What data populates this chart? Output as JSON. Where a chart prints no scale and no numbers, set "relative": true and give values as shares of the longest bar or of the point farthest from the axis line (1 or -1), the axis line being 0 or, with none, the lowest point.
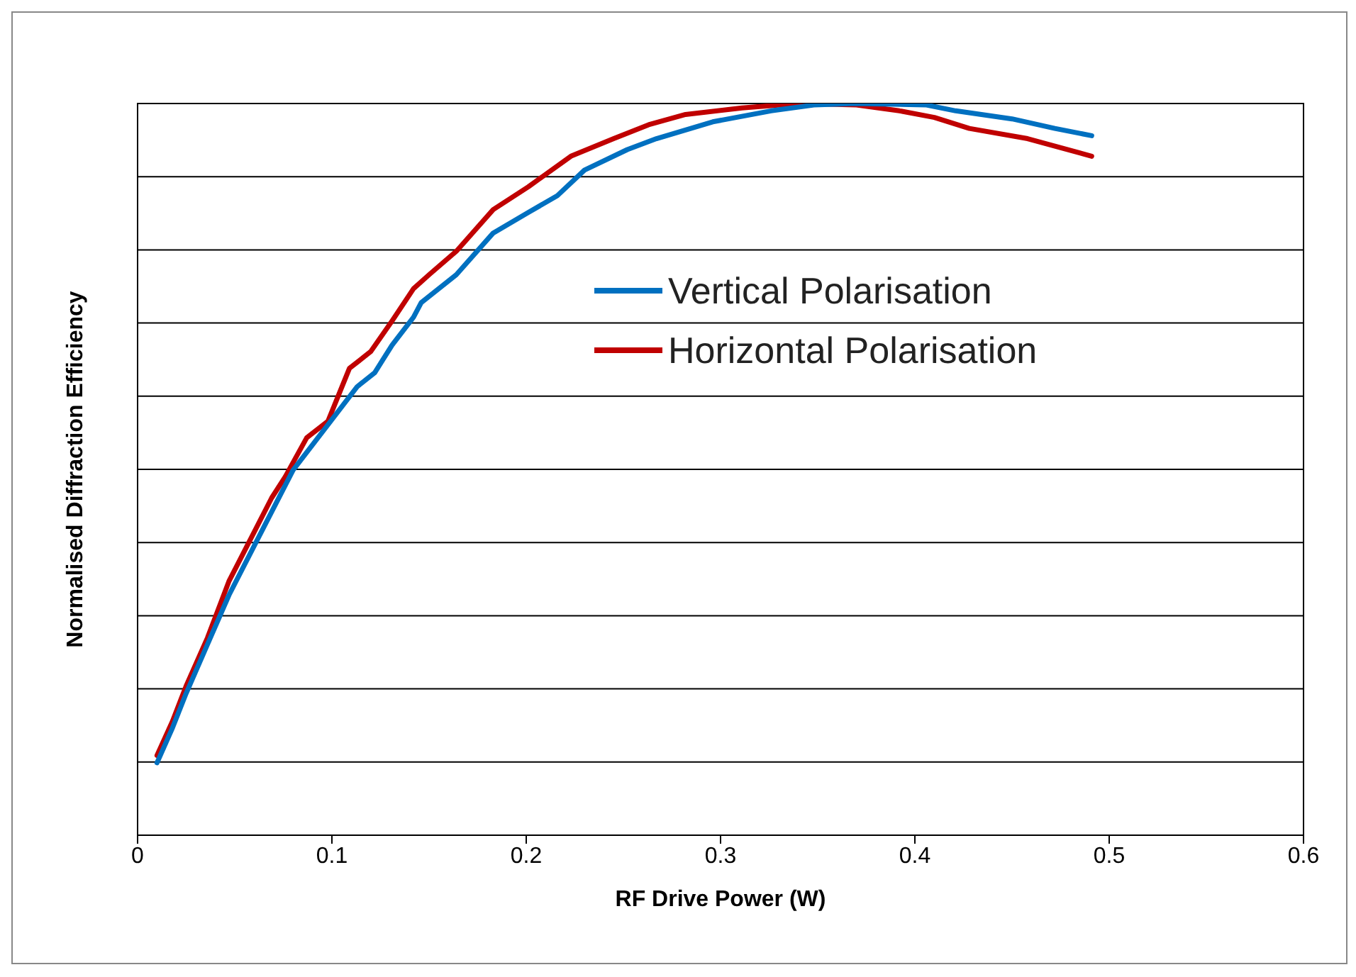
{
  "chart_data": {
    "type": "line",
    "relative": true,
    "xlabel": "RF Drive Power (W)",
    "ylabel": "Normalised Diffraction Efficiency",
    "xlim": [
      0,
      0.6
    ],
    "xticks": [
      0,
      0.1,
      0.2,
      0.3,
      0.4,
      0.5,
      0.6
    ],
    "grid": "y",
    "legend": "top right",
    "marker": "none",
    "line_style": "solid",
    "series": [
      {
        "name": "Vertical Polarisation",
        "color": "#0070c0",
        "x": [
          0.01,
          0.018,
          0.025,
          0.036,
          0.047,
          0.058,
          0.069,
          0.08,
          0.091,
          0.102,
          0.113,
          0.122,
          0.131,
          0.142,
          0.146,
          0.164,
          0.183,
          0.201,
          0.216,
          0.23,
          0.252,
          0.267,
          0.296,
          0.326,
          0.348,
          0.37,
          0.406,
          0.421,
          0.45,
          0.472,
          0.491
        ],
        "values": [
          0.099,
          0.147,
          0.194,
          0.261,
          0.328,
          0.385,
          0.442,
          0.499,
          0.537,
          0.575,
          0.613,
          0.632,
          0.67,
          0.708,
          0.728,
          0.766,
          0.823,
          0.851,
          0.874,
          0.909,
          0.937,
          0.952,
          0.975,
          0.99,
          0.998,
          1.0,
          0.998,
          0.99,
          0.979,
          0.966,
          0.956
        ]
      },
      {
        "name": "Horizontal Polarisation",
        "color": "#c00000",
        "x": [
          0.01,
          0.018,
          0.025,
          0.036,
          0.047,
          0.058,
          0.069,
          0.076,
          0.087,
          0.098,
          0.109,
          0.12,
          0.131,
          0.142,
          0.15,
          0.164,
          0.183,
          0.201,
          0.223,
          0.245,
          0.263,
          0.282,
          0.311,
          0.34,
          0.37,
          0.392,
          0.41,
          0.428,
          0.458,
          0.491
        ],
        "values": [
          0.109,
          0.156,
          0.204,
          0.27,
          0.347,
          0.404,
          0.461,
          0.49,
          0.543,
          0.566,
          0.638,
          0.661,
          0.703,
          0.747,
          0.766,
          0.798,
          0.855,
          0.886,
          0.928,
          0.952,
          0.971,
          0.985,
          0.994,
          1.0,
          0.998,
          0.99,
          0.981,
          0.966,
          0.952,
          0.928
        ]
      }
    ]
  }
}
